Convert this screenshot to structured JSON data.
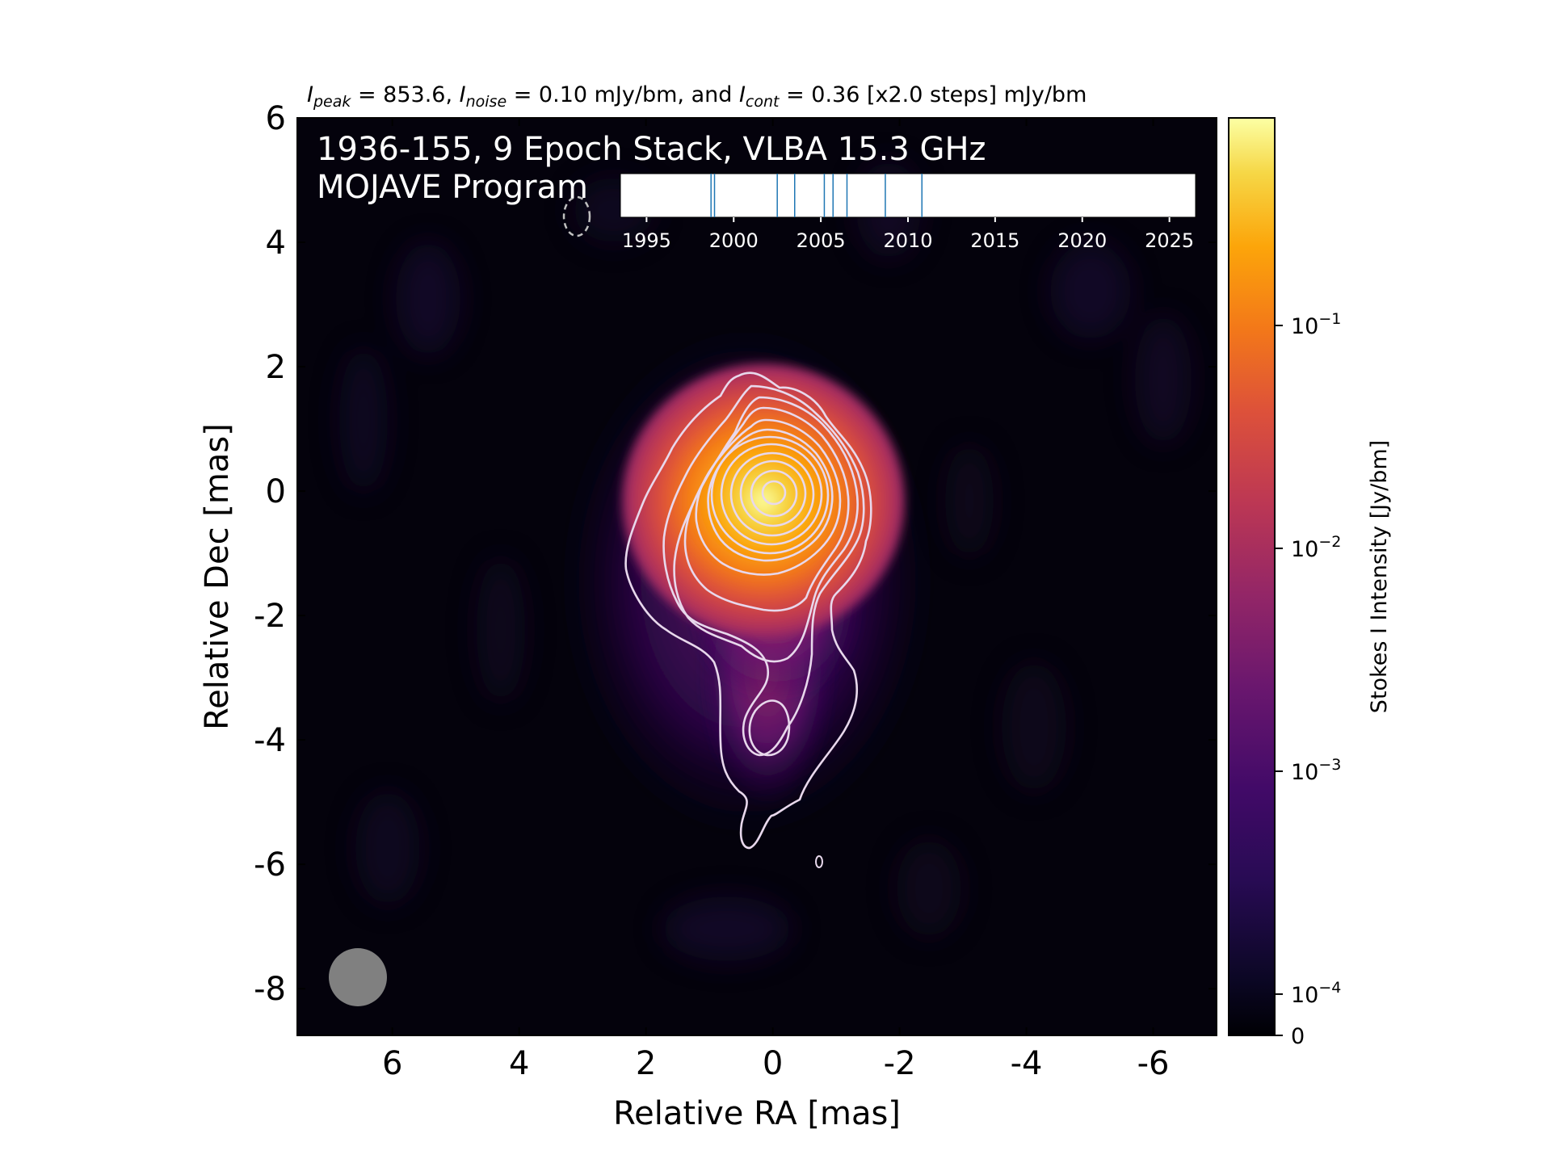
{
  "chart_data": {
    "type": "heatmap",
    "header": {
      "peak_sym": "I",
      "peak_sub": "peak",
      "peak_val": " = 853.6, ",
      "noise_sym": "I",
      "noise_sub": "noise",
      "noise_val": " = 0.10 mJy/bm, and ",
      "cont_sym": "I",
      "cont_sub": "cont",
      "cont_val": " = 0.36 [x2.0 steps] mJy/bm"
    },
    "overlay_title_line1": "1936-155, 9 Epoch Stack, VLBA 15.3 GHz",
    "overlay_title_line2": "MOJAVE Program",
    "xlabel": "Relative RA [mas]",
    "ylabel": "Relative Dec [mas]",
    "xlim": [
      7.5,
      -7.0
    ],
    "ylim": [
      -8.75,
      6.0
    ],
    "xticks": [
      6,
      4,
      2,
      0,
      -2,
      -4,
      -6
    ],
    "xtick_labels": [
      "6",
      "4",
      "2",
      "0",
      "-2",
      "-4",
      "-6"
    ],
    "yticks": [
      6,
      4,
      2,
      0,
      -2,
      -4,
      -6,
      -8
    ],
    "ytick_labels": [
      "6",
      "4",
      "2",
      "0",
      "-2",
      "-4",
      "-6",
      "-8"
    ],
    "colorbar": {
      "label": "Stokes I Intensity [Jy/bm]",
      "scale": "log",
      "colormap": "inferno",
      "ticks": [
        {
          "value": 0,
          "base": "0",
          "exp": ""
        },
        {
          "value": 0.0001,
          "base": "10",
          "exp": "−4"
        },
        {
          "value": 0.001,
          "base": "10",
          "exp": "−3"
        },
        {
          "value": 0.01,
          "base": "10",
          "exp": "−2"
        },
        {
          "value": 0.1,
          "base": "10",
          "exp": "−1"
        }
      ]
    },
    "epoch_timeline": {
      "xlim": [
        1993.5,
        2026.5
      ],
      "ticks": [
        1995,
        2000,
        2005,
        2010,
        2015,
        2020,
        2025
      ],
      "tick_labels": [
        "1995",
        "2000",
        "2005",
        "2010",
        "2015",
        "2020",
        "2025"
      ],
      "epochs": [
        1998.7,
        1998.9,
        2002.5,
        2003.5,
        2005.2,
        2005.7,
        2006.5,
        2008.7,
        2010.8
      ],
      "line_color": "#1f77b4"
    },
    "contours_mJy_per_bm": [
      0.36,
      0.72,
      1.44,
      2.88,
      5.76,
      11.52,
      23.04,
      46.08,
      92.16,
      184.32,
      368.64,
      737.28
    ],
    "peak_position_mas": [
      0.0,
      0.0
    ],
    "beam_color": "#808080",
    "contour_color": "#e8d8ec"
  }
}
